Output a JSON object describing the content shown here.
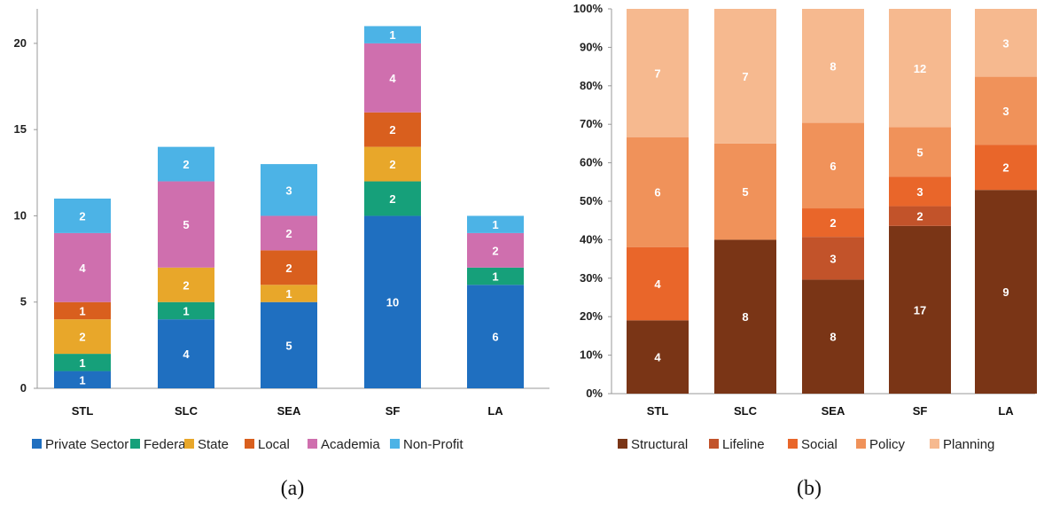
{
  "chart_data": [
    {
      "type": "bar",
      "stacked": true,
      "caption": "(a)",
      "categories": [
        "STL",
        "SLC",
        "SEA",
        "SF",
        "LA"
      ],
      "ylim": [
        0,
        22
      ],
      "yticks": [
        "0",
        "5",
        "10",
        "15",
        "20"
      ],
      "ytick_values": [
        0,
        5,
        10,
        15,
        20
      ],
      "grid": false,
      "legend_position": "bottom",
      "series": [
        {
          "name": "Private Sector",
          "color": "#1f6fc0",
          "values": [
            1,
            4,
            5,
            10,
            6
          ]
        },
        {
          "name": "Federal",
          "color": "#16a07a",
          "values": [
            1,
            1,
            0,
            2,
            1
          ]
        },
        {
          "name": "State",
          "color": "#e8a72a",
          "values": [
            2,
            2,
            1,
            2,
            0
          ]
        },
        {
          "name": "Local",
          "color": "#d95f1e",
          "values": [
            1,
            0,
            2,
            2,
            0
          ]
        },
        {
          "name": "Academia",
          "color": "#cf6fae",
          "values": [
            4,
            5,
            2,
            4,
            2
          ]
        },
        {
          "name": "Non-Profit",
          "color": "#4cb3e6",
          "values": [
            2,
            2,
            3,
            1,
            1
          ]
        }
      ]
    },
    {
      "type": "bar",
      "stacked": true,
      "percent": true,
      "caption": "(b)",
      "categories": [
        "STL",
        "SLC",
        "SEA",
        "SF",
        "LA"
      ],
      "ylim": [
        0,
        100
      ],
      "yticks": [
        "0%",
        "10%",
        "20%",
        "30%",
        "40%",
        "50%",
        "60%",
        "70%",
        "80%",
        "90%",
        "100%"
      ],
      "ytick_values": [
        0,
        10,
        20,
        30,
        40,
        50,
        60,
        70,
        80,
        90,
        100
      ],
      "grid": false,
      "legend_position": "bottom",
      "series": [
        {
          "name": "Structural",
          "color": "#7a3516",
          "values": [
            4,
            8,
            8,
            17,
            9
          ]
        },
        {
          "name": "Lifeline",
          "color": "#c2532a",
          "values": [
            0,
            0,
            3,
            2,
            0
          ]
        },
        {
          "name": "Social",
          "color": "#e9662a",
          "values": [
            4,
            0,
            2,
            3,
            2
          ]
        },
        {
          "name": "Policy",
          "color": "#f0925a",
          "values": [
            6,
            5,
            6,
            5,
            3
          ]
        },
        {
          "name": "Planning",
          "color": "#f6b98f",
          "values": [
            7,
            7,
            8,
            12,
            3
          ]
        }
      ]
    }
  ]
}
